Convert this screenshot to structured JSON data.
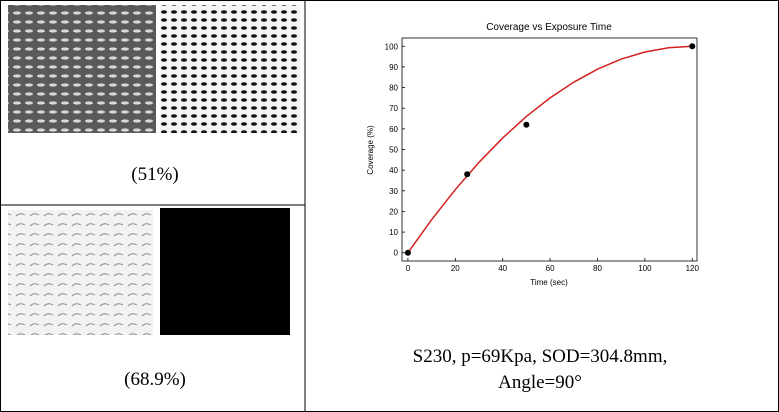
{
  "cells": [
    {
      "label": "(51%)"
    },
    {
      "label": "(68.9%)"
    }
  ],
  "caption": [
    "S230, p=69Kpa, SOD=304.8mm,",
    "Angle=90°"
  ],
  "chart_data": {
    "type": "scatter",
    "title": "Coverage vs Exposure Time",
    "x_label": "Time (sec)",
    "y_label": "Coverage (%)",
    "series": [
      {
        "type": "scatter",
        "color": "#000000",
        "x": [
          0,
          25,
          50,
          120
        ],
        "values": [
          0,
          38,
          62,
          100
        ]
      },
      {
        "type": "line",
        "color": "#d42020",
        "x": [
          0,
          10,
          20,
          30,
          40,
          50,
          60,
          70,
          80,
          90,
          100,
          110,
          120
        ],
        "values": [
          0,
          16,
          30.6,
          43.8,
          55.6,
          66,
          75,
          82.6,
          88.9,
          93.8,
          97.2,
          99.3,
          100
        ]
      }
    ],
    "xlim": [
      -2.5,
      122
    ],
    "ylim": [
      -4,
      104
    ],
    "xticks": [
      0,
      20,
      40,
      60,
      80,
      100,
      120
    ],
    "yticks": [
      0,
      10,
      20,
      30,
      40,
      50,
      60,
      70,
      80,
      90,
      100
    ]
  }
}
